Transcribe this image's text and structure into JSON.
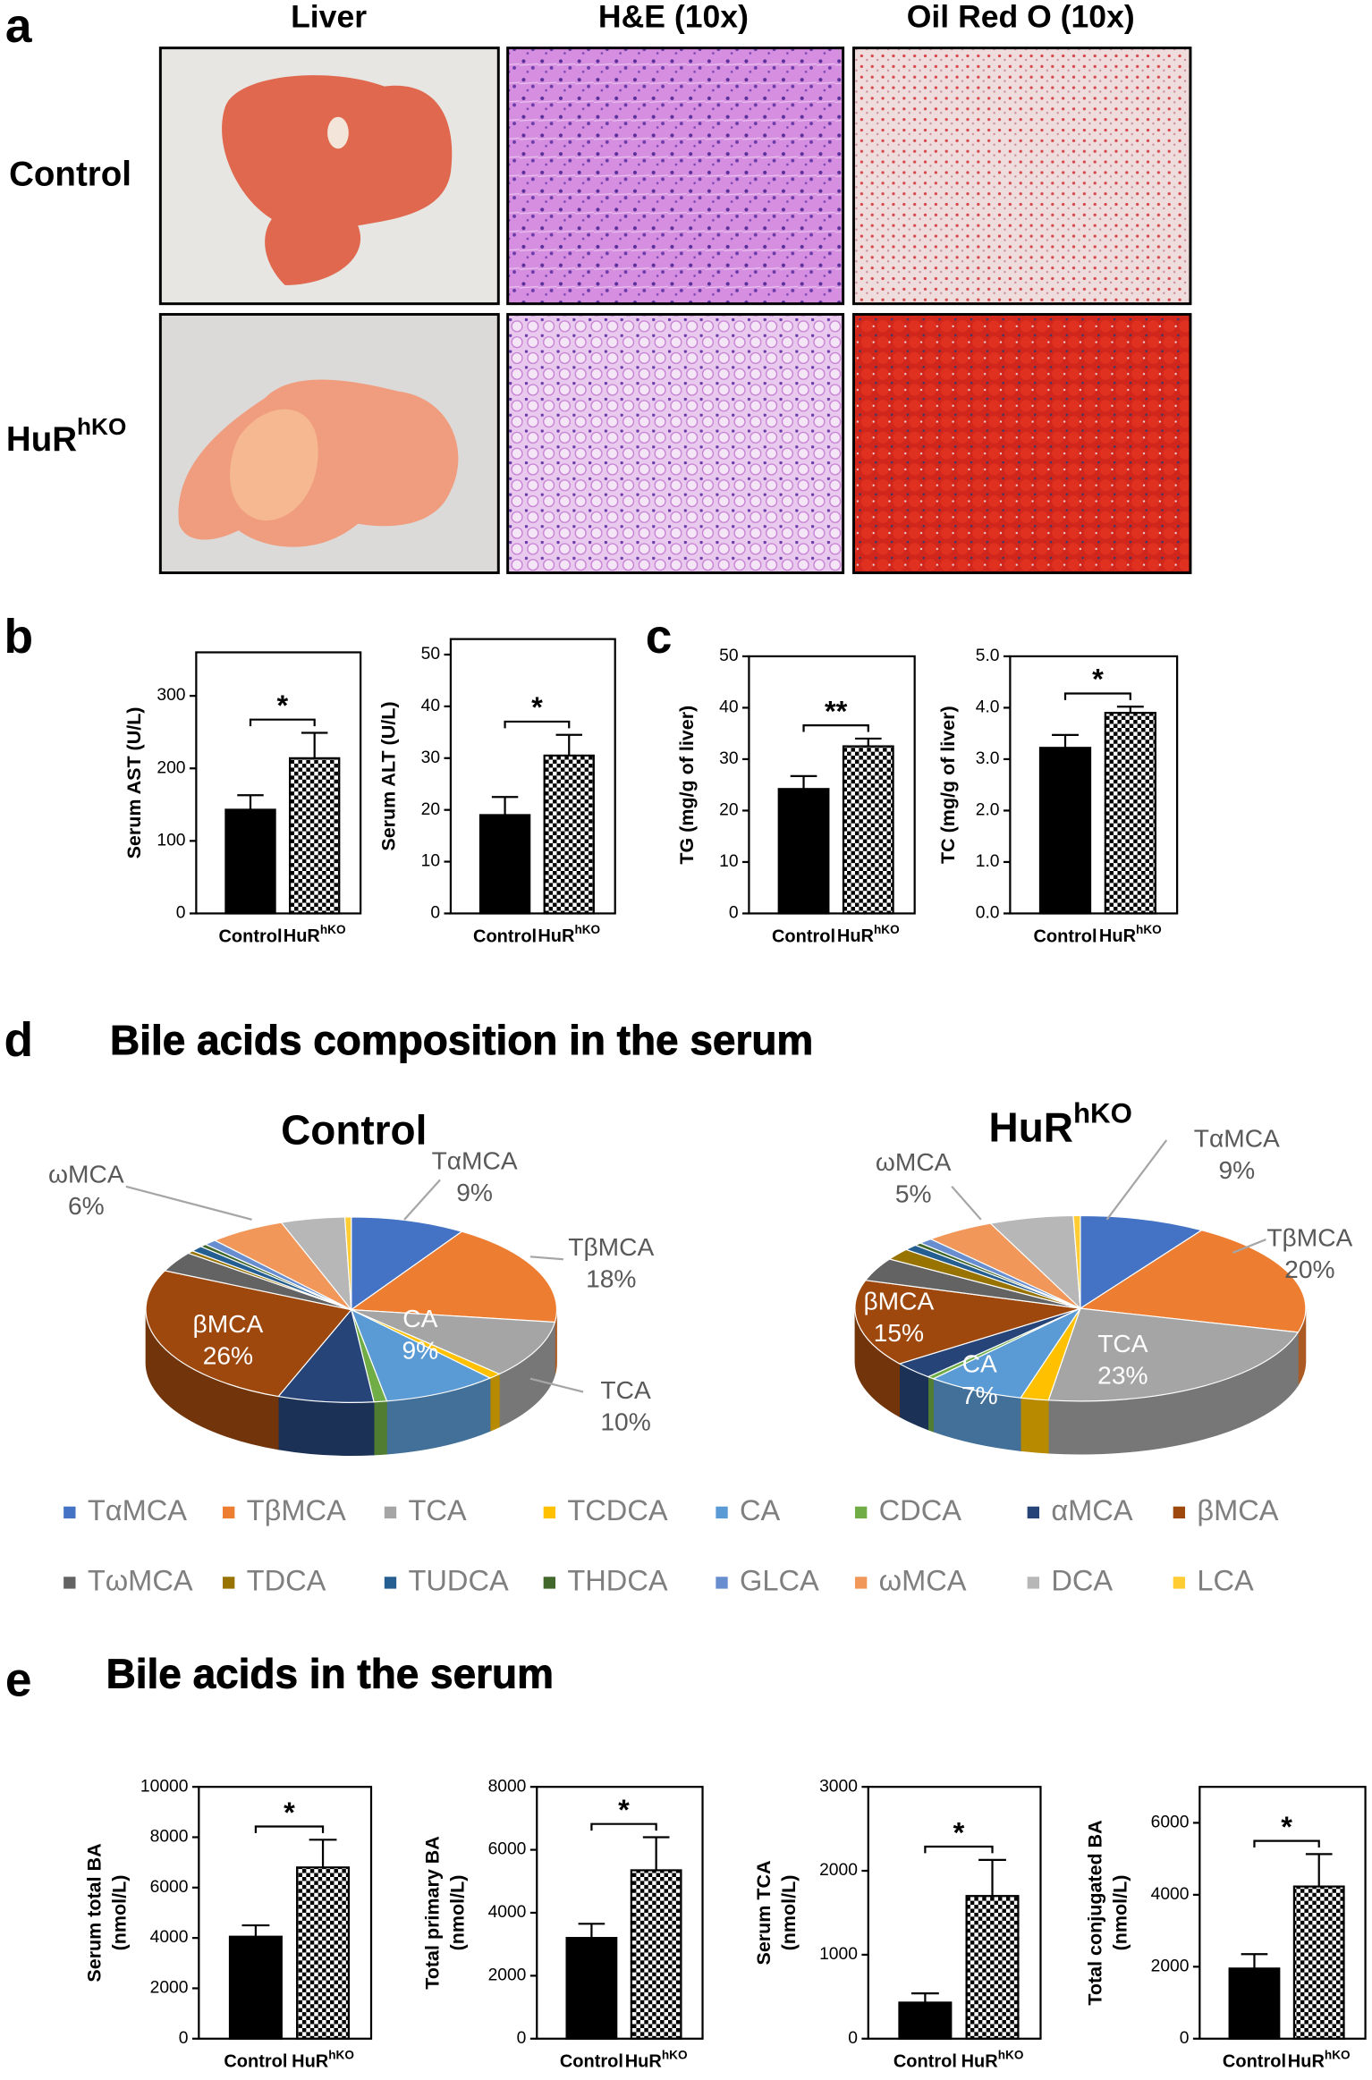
{
  "panel_letters": [
    "a",
    "b",
    "c",
    "d",
    "e"
  ],
  "histology": {
    "columns": [
      "Liver",
      "H&E (10x)",
      "Oil Red O (10x)"
    ],
    "rows": [
      "Control",
      {
        "base": "HuR",
        "sup": "hKO"
      }
    ]
  },
  "section_e_title": "Bile acids in the serum",
  "chart_data": [
    {
      "type": "bar",
      "y_label": "Serum AST (U/L)",
      "categories": [
        "Control",
        {
          "base": "HuR",
          "sup": "hKO"
        }
      ],
      "values": [
        143,
        214
      ],
      "errors": [
        20,
        35
      ],
      "fills": [
        "#000000",
        "checkerboard"
      ],
      "ylim": [
        0,
        360
      ],
      "yticks": [
        0,
        100,
        200,
        300
      ],
      "significance": "*"
    },
    {
      "type": "bar",
      "y_label": "Serum ALT (U/L)",
      "categories": [
        "Control",
        {
          "base": "HuR",
          "sup": "hKO"
        }
      ],
      "values": [
        19,
        30.5
      ],
      "errors": [
        3.5,
        4
      ],
      "fills": [
        "#000000",
        "checkerboard"
      ],
      "ylim": [
        0,
        53
      ],
      "yticks": [
        0,
        10,
        20,
        30,
        40,
        50
      ],
      "significance": "*"
    },
    {
      "type": "bar",
      "y_label": "TG (mg/g of liver)",
      "categories": [
        "Control",
        {
          "base": "HuR",
          "sup": "hKO"
        }
      ],
      "values": [
        24.2,
        32.5
      ],
      "errors": [
        2.5,
        1.5
      ],
      "fills": [
        "#000000",
        "checkerboard"
      ],
      "ylim": [
        0,
        50
      ],
      "yticks": [
        0,
        10,
        20,
        30,
        40,
        50
      ],
      "significance": "**"
    },
    {
      "type": "bar",
      "y_label": "TC (mg/g of liver)",
      "categories": [
        "Control",
        {
          "base": "HuR",
          "sup": "hKO"
        }
      ],
      "values": [
        3.22,
        3.9
      ],
      "errors": [
        0.25,
        0.12
      ],
      "fills": [
        "#000000",
        "checkerboard"
      ],
      "ylim": [
        0,
        5
      ],
      "yticks": [
        {
          "value": 0,
          "label": "0.0"
        },
        {
          "value": 1,
          "label": "1.0"
        },
        {
          "value": 2,
          "label": "2.0"
        },
        {
          "value": 3,
          "label": "3.0"
        },
        {
          "value": 4,
          "label": "4.0"
        },
        {
          "value": 5,
          "label": "5.0"
        }
      ],
      "significance": "*"
    },
    {
      "type": "bar",
      "y_label": [
        "Serum total BA",
        "(nmol/L)"
      ],
      "categories": [
        "Control",
        {
          "base": "HuR",
          "sup": "hKO"
        }
      ],
      "values": [
        4050,
        6800
      ],
      "errors": [
        450,
        1100
      ],
      "fills": [
        "#000000",
        "checkerboard"
      ],
      "ylim": [
        0,
        10000
      ],
      "yticks": [
        0,
        2000,
        4000,
        6000,
        8000,
        10000
      ],
      "significance": "*"
    },
    {
      "type": "bar",
      "y_label": [
        "Total primary BA",
        "(nmol/L)"
      ],
      "categories": [
        "Control",
        {
          "base": "HuR",
          "sup": "hKO"
        }
      ],
      "values": [
        3200,
        5350
      ],
      "errors": [
        450,
        1050
      ],
      "fills": [
        "#000000",
        "checkerboard"
      ],
      "ylim": [
        0,
        8000
      ],
      "yticks": [
        0,
        2000,
        4000,
        6000,
        8000
      ],
      "significance": "*"
    },
    {
      "type": "bar",
      "y_label": [
        "Serum TCA",
        "(nmol/L)"
      ],
      "categories": [
        "Control",
        {
          "base": "HuR",
          "sup": "hKO"
        }
      ],
      "values": [
        430,
        1700
      ],
      "errors": [
        110,
        430
      ],
      "fills": [
        "#000000",
        "checkerboard"
      ],
      "ylim": [
        0,
        3000
      ],
      "yticks": [
        0,
        1000,
        2000,
        3000
      ],
      "significance": "*"
    },
    {
      "type": "bar",
      "y_label": [
        "Total conjugated BA",
        "(nmol/L)"
      ],
      "categories": [
        "Control",
        {
          "base": "HuR",
          "sup": "hKO"
        }
      ],
      "values": [
        1950,
        4230
      ],
      "errors": [
        400,
        900
      ],
      "fills": [
        "#000000",
        "checkerboard"
      ],
      "ylim": [
        0,
        7000
      ],
      "yticks": [
        0,
        2000,
        4000,
        6000
      ],
      "significance": "*"
    },
    {
      "type": "pie",
      "title": "Bile acids composition in the serum",
      "categories": [
        "TαMCA",
        "TβMCA",
        "TCA",
        "TCDCA",
        "CA",
        "CDCA",
        "αMCA",
        "βMCA",
        "TωMCA",
        "TDCA",
        "TUDCA",
        "THDCA",
        "GLCA",
        "ωMCA",
        "DCA",
        "LCA"
      ],
      "colors": [
        "#4472c4",
        "#ed7d31",
        "#a5a5a5",
        "#ffc000",
        "#5b9bd5",
        "#70ad47",
        "#264478",
        "#9e480e",
        "#636363",
        "#997300",
        "#255e91",
        "#43682b",
        "#698ed0",
        "#f1975a",
        "#b7b7b7",
        "#ffcd33"
      ],
      "series": [
        {
          "name": "Control",
          "values": [
            9,
            18,
            10,
            1,
            9,
            1,
            7.5,
            26,
            3.5,
            0.5,
            1,
            0.5,
            1,
            6,
            5,
            0.5
          ],
          "value_labels": [
            "9%",
            "18%",
            "10%",
            null,
            "9%",
            null,
            null,
            "26%",
            null,
            null,
            null,
            null,
            null,
            "6%",
            null,
            null
          ]
        },
        {
          "name": {
            "base": "HuR",
            "sup": "hKO"
          },
          "values": [
            9,
            20,
            23,
            2,
            7,
            0.5,
            3,
            15,
            4,
            2,
            1,
            0.5,
            1,
            5,
            6,
            0.5
          ],
          "value_labels": [
            "9%",
            "20%",
            "23%",
            null,
            "7%",
            null,
            null,
            "15%",
            null,
            null,
            null,
            null,
            null,
            "5%",
            null,
            null
          ]
        }
      ]
    }
  ]
}
